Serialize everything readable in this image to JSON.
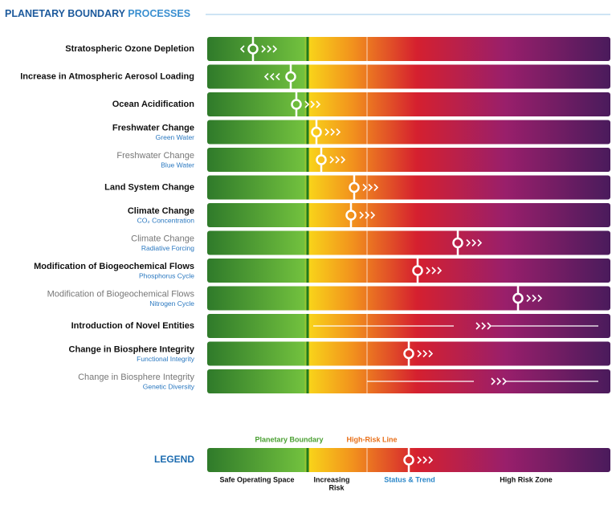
{
  "title": {
    "main": "PLANETARY BOUNDARY",
    "rest": "PROCESSES"
  },
  "rows": [
    {
      "label": "Stratospheric Ozone Depletion"
    },
    {
      "label": "Increase in Atmospheric Aerosol Loading"
    },
    {
      "label": "Ocean Acidification"
    },
    {
      "label": "Freshwater Change",
      "sublabel": "Green Water"
    },
    {
      "label": "Freshwater Change",
      "sublabel": "Blue Water"
    },
    {
      "label": "Land System Change"
    },
    {
      "label": "Climate Change",
      "sublabel": "CO₂ Concentration"
    },
    {
      "label": "Climate Change",
      "sublabel": "Radiative Forcing"
    },
    {
      "label": "Modification of Biogeochemical Flows",
      "sublabel": "Phosphorus Cycle"
    },
    {
      "label": "Modification of Biogeochemical Flows",
      "sublabel": "Nitrogen Cycle"
    },
    {
      "label": "Introduction of Novel Entities"
    },
    {
      "label": "Change in Biosphere Integrity",
      "sublabel": "Functional Integrity"
    },
    {
      "label": "Change in Biosphere Integrity",
      "sublabel": "Genetic Diversity"
    }
  ],
  "legend": {
    "title": "LEGEND",
    "boundary": "Planetary Boundary",
    "high_risk_line": "High-Risk Line",
    "safe": "Safe Operating Space",
    "increasing": [
      "Increasing",
      "Risk"
    ],
    "status": "Status & Trend",
    "high_risk": "High Risk Zone"
  }
}
